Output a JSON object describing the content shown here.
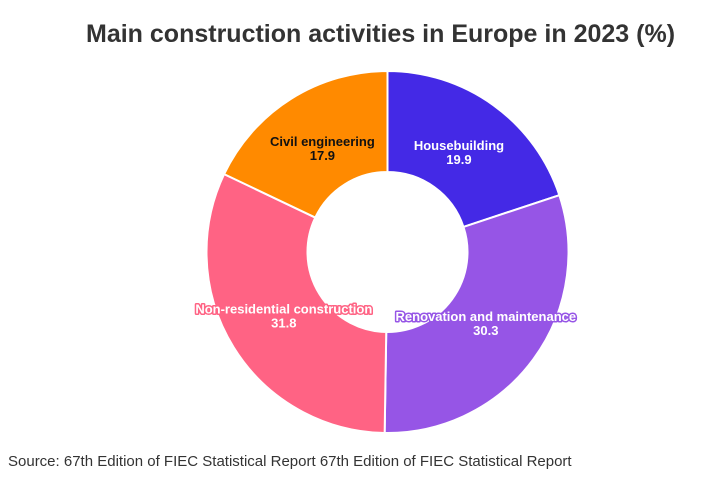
{
  "chart_data": {
    "type": "pie",
    "donut": true,
    "title": "Main construction activities in Europe in 2023 (%)",
    "source": "Source: 67th Edition of FIEC Statistical Report 67th Edition of FIEC Statistical Report",
    "slices": [
      {
        "label": "Housebuilding",
        "value": 19.9,
        "color": "#4429E6",
        "text_color": "#ffffff"
      },
      {
        "label": "Renovation and maintenance",
        "value": 30.3,
        "color": "#9655E6",
        "text_color": "#ffffff"
      },
      {
        "label": "Non-residential construction",
        "value": 31.8,
        "color": "#FF6384",
        "text_color": "#ffffff"
      },
      {
        "label": "Civil engineering",
        "value": 17.9,
        "color": "#FF8A00",
        "text_color": "#111111"
      }
    ]
  }
}
